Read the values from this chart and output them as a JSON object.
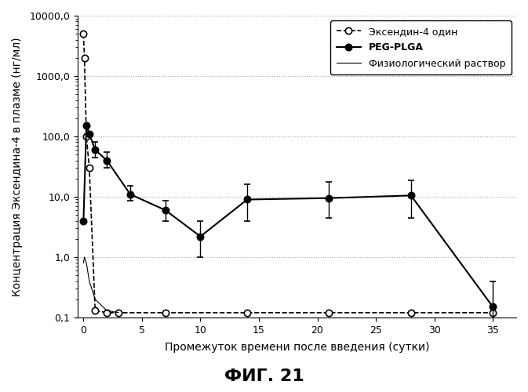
{
  "title": "ФИГ. 21",
  "xlabel": "Промежуток времени после введения (сутки)",
  "ylabel": "Концентрация Эксендина-4 в плазме (нг/мл)",
  "ylim": [
    0.1,
    10000.0
  ],
  "xlim": [
    -0.5,
    37
  ],
  "xticks": [
    0,
    5,
    10,
    15,
    20,
    25,
    30,
    35
  ],
  "exendin_x": [
    0.0,
    0.08,
    0.25,
    0.5,
    1.0,
    2.0,
    3.0,
    7.0,
    14.0,
    21.0,
    28.0,
    35.0
  ],
  "exendin_y": [
    5000.0,
    2000.0,
    100.0,
    30.0,
    0.13,
    0.12,
    0.12,
    0.12,
    0.12,
    0.12,
    0.12,
    0.12
  ],
  "peg_plga_x": [
    0.0,
    0.25,
    0.5,
    1.0,
    2.0,
    4.0,
    7.0,
    10.0,
    14.0,
    21.0,
    28.0,
    35.0
  ],
  "peg_plga_y": [
    4.0,
    150.0,
    110.0,
    60.0,
    40.0,
    11.0,
    6.0,
    2.2,
    9.0,
    9.5,
    10.5,
    0.15
  ],
  "peg_plga_yerr_lo": [
    0.0,
    0.0,
    0.0,
    15.0,
    10.0,
    2.5,
    2.0,
    1.2,
    5.0,
    5.0,
    6.0,
    0.06
  ],
  "peg_plga_yerr_hi": [
    0.0,
    0.0,
    0.0,
    20.0,
    15.0,
    4.0,
    2.5,
    1.8,
    7.0,
    8.0,
    8.0,
    0.25
  ],
  "saline_x": [
    0.0,
    0.08,
    0.25,
    0.5,
    1.0,
    2.0,
    3.0
  ],
  "saline_y": [
    0.8,
    1.0,
    0.8,
    0.4,
    0.2,
    0.13,
    0.12
  ],
  "legend_labels": [
    "Эксендин-4 один",
    "PEG-PLGA",
    "Физиологический раствор"
  ],
  "line_color": "#000000",
  "background_color": "#ffffff",
  "grid_color": "#aaaaaa"
}
